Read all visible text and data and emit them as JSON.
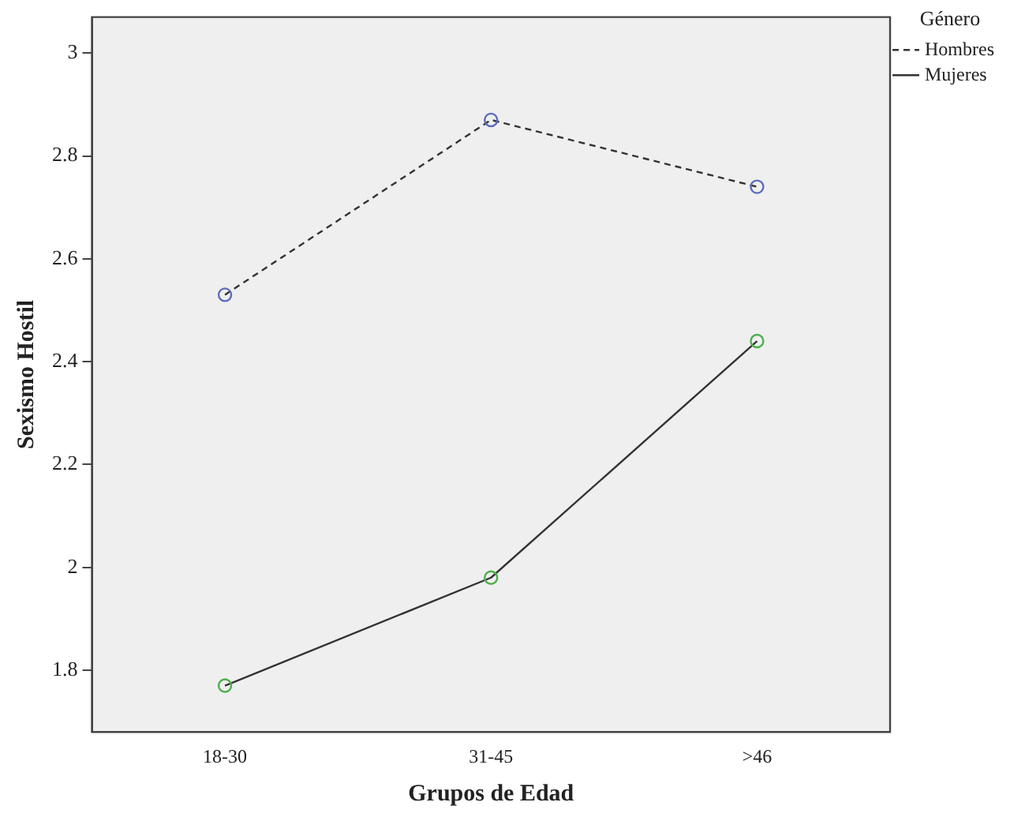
{
  "chart_data": {
    "type": "line",
    "xlabel": "Grupos de Edad",
    "ylabel": "Sexismo Hostil",
    "legend_title": "Género",
    "legend": "top right",
    "marker": "circle",
    "grid": false,
    "categories": [
      "18-30",
      "31-45",
      ">46"
    ],
    "ylim": [
      1.68,
      3.07
    ],
    "yticks": [
      1.8,
      2,
      2.2,
      2.4,
      2.6,
      2.8,
      3
    ],
    "series": [
      {
        "name": "Hombres",
        "color": "#333333",
        "colors": [
          "#5b6bbf",
          "#5b6bbf",
          "#5b6bbf"
        ],
        "line_style": "dashed",
        "values": [
          2.53,
          2.87,
          2.74
        ]
      },
      {
        "name": "Mujeres",
        "color": "#333333",
        "colors": [
          "#4cb04c",
          "#4cb04c",
          "#4cb04c"
        ],
        "line_style": "solid",
        "values": [
          1.77,
          1.98,
          2.44
        ]
      }
    ]
  }
}
